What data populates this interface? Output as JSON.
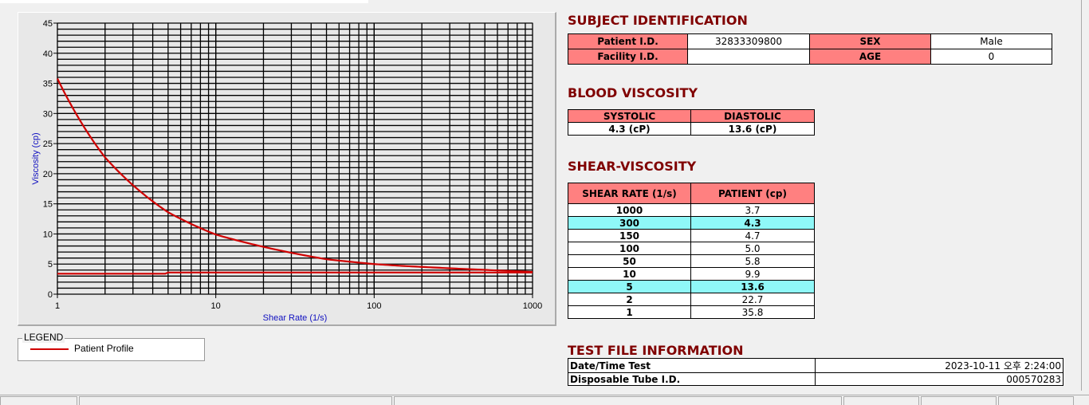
{
  "chart_data": {
    "type": "line",
    "xlabel": "Shear Rate (1/s)",
    "ylabel": "Viscosity (cp)",
    "xscale": "log",
    "xlim": [
      1,
      1000
    ],
    "ylim": [
      0,
      45
    ],
    "xticks": [
      "1",
      "10",
      "100",
      "1000"
    ],
    "yticks": [
      "0",
      "5",
      "10",
      "15",
      "20",
      "25",
      "30",
      "35",
      "40",
      "45"
    ],
    "grid": true,
    "legend_title": "LEGEND",
    "legend_placement": "bottom-left, outside",
    "series": [
      {
        "name": "Patient Profile",
        "color": "#d00000",
        "x": [
          1,
          2,
          5,
          10,
          50,
          100,
          150,
          300,
          1000
        ],
        "y": [
          35.8,
          22.7,
          13.6,
          9.9,
          5.8,
          5.0,
          4.7,
          4.3,
          3.7
        ]
      },
      {
        "color": "#d00000",
        "x": [
          1,
          4.8,
          5,
          1000
        ],
        "y": [
          3.4,
          3.4,
          3.6,
          3.6
        ]
      }
    ]
  },
  "subject": {
    "title": "SUBJECT IDENTIFICATION",
    "patient_id_label": "Patient I.D.",
    "patient_id": "32833309800",
    "sex_label": "SEX",
    "sex": "Male",
    "facility_label": "Facility I.D.",
    "facility": "",
    "age_label": "AGE",
    "age": "0"
  },
  "blood": {
    "title": "BLOOD VISCOSITY",
    "systolic_label": "SYSTOLIC",
    "diastolic_label": "DIASTOLIC",
    "systolic": "4.3 (cP)",
    "diastolic": "13.6 (cP)"
  },
  "shear": {
    "title": "SHEAR-VISCOSITY",
    "col1": "SHEAR RATE (1/s)",
    "col2": "PATIENT (cp)",
    "rows": [
      {
        "rate": "1000",
        "v": "3.7"
      },
      {
        "rate": "300",
        "v": "4.3",
        "hl": true
      },
      {
        "rate": "150",
        "v": "4.7"
      },
      {
        "rate": "100",
        "v": "5.0"
      },
      {
        "rate": "50",
        "v": "5.8"
      },
      {
        "rate": "10",
        "v": "9.9"
      },
      {
        "rate": "5",
        "v": "13.6",
        "hl": true
      },
      {
        "rate": "2",
        "v": "22.7"
      },
      {
        "rate": "1",
        "v": "35.8"
      }
    ]
  },
  "testfile": {
    "title": "TEST FILE INFORMATION",
    "date_label": "Date/Time Test",
    "date": "2023-10-11   오후 2:24:00",
    "tube_label": "Disposable Tube I.D.",
    "tube": "000570283"
  },
  "colors": {
    "header_cell": "#ff8080",
    "highlight": "#8ff8f8",
    "section_title": "#800000",
    "curve": "#d00000"
  }
}
